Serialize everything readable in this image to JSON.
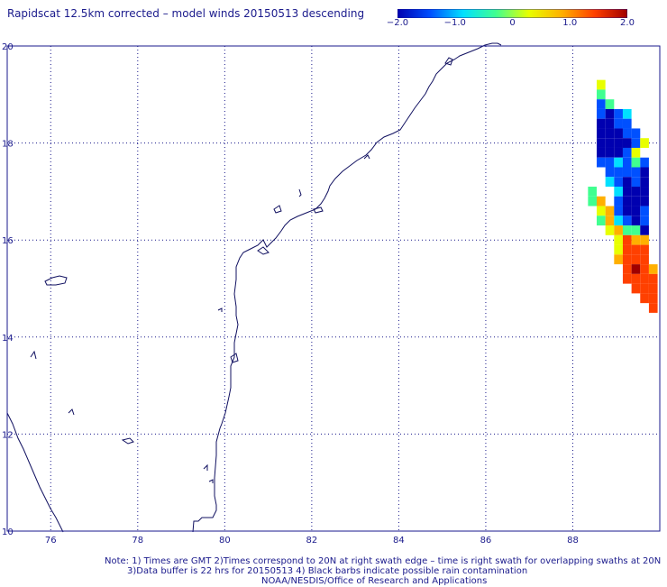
{
  "title": "Rapidscat 12.5km corrected – model winds 20150513 descending",
  "colorbar": {
    "labels": [
      "−2.0",
      "−1.0",
      "0",
      "1.0",
      "2.0"
    ],
    "values": [
      -2.0,
      -1.0,
      0,
      1.0,
      2.0
    ],
    "colors": [
      "#0000b0",
      "#0050ff",
      "#00e0ff",
      "#40ff90",
      "#e8ff00",
      "#ffb000",
      "#ff4000",
      "#a00000"
    ]
  },
  "map": {
    "lon_range": [
      75.0,
      90.0
    ],
    "lat_range": [
      10.0,
      20.0
    ],
    "lon_ticks": [
      "76",
      "78",
      "80",
      "82",
      "84",
      "86",
      "88"
    ],
    "lon_tick_values": [
      76,
      78,
      80,
      82,
      84,
      86,
      88
    ],
    "lat_ticks": [
      "10",
      "12",
      "14",
      "16",
      "18",
      "20"
    ],
    "lat_tick_values": [
      10,
      12,
      14,
      16,
      18,
      20
    ],
    "grid": "dotted",
    "coastline_color": "#101060",
    "swath_cells": [
      {
        "lon": 88.65,
        "lat": 19.2,
        "v": 0.2
      },
      {
        "lon": 88.65,
        "lat": 19.0,
        "v": -0.5
      },
      {
        "lon": 88.65,
        "lat": 18.8,
        "v": -1.3
      },
      {
        "lon": 88.85,
        "lat": 18.8,
        "v": -0.4
      },
      {
        "lon": 88.65,
        "lat": 18.6,
        "v": -1.5
      },
      {
        "lon": 88.85,
        "lat": 18.6,
        "v": -1.6
      },
      {
        "lon": 89.05,
        "lat": 18.6,
        "v": -1.2
      },
      {
        "lon": 89.25,
        "lat": 18.6,
        "v": -1.0
      },
      {
        "lon": 88.65,
        "lat": 18.4,
        "v": -1.7
      },
      {
        "lon": 88.85,
        "lat": 18.4,
        "v": -1.8
      },
      {
        "lon": 89.05,
        "lat": 18.4,
        "v": -1.5
      },
      {
        "lon": 89.25,
        "lat": 18.4,
        "v": -1.3
      },
      {
        "lon": 88.65,
        "lat": 18.2,
        "v": -1.8
      },
      {
        "lon": 88.85,
        "lat": 18.2,
        "v": -1.9
      },
      {
        "lon": 89.05,
        "lat": 18.2,
        "v": -1.7
      },
      {
        "lon": 89.25,
        "lat": 18.2,
        "v": -1.5
      },
      {
        "lon": 89.45,
        "lat": 18.2,
        "v": -1.2
      },
      {
        "lon": 88.65,
        "lat": 18.0,
        "v": -1.9
      },
      {
        "lon": 88.85,
        "lat": 18.0,
        "v": -2.0
      },
      {
        "lon": 89.05,
        "lat": 18.0,
        "v": -1.8
      },
      {
        "lon": 89.25,
        "lat": 18.0,
        "v": -1.6
      },
      {
        "lon": 89.45,
        "lat": 18.0,
        "v": -1.4
      },
      {
        "lon": 89.65,
        "lat": 18.0,
        "v": 0.4
      },
      {
        "lon": 88.65,
        "lat": 17.8,
        "v": -1.8
      },
      {
        "lon": 88.85,
        "lat": 17.8,
        "v": -1.9
      },
      {
        "lon": 89.05,
        "lat": 17.8,
        "v": -1.7
      },
      {
        "lon": 89.25,
        "lat": 17.8,
        "v": -1.3
      },
      {
        "lon": 89.45,
        "lat": 17.8,
        "v": 0.3
      },
      {
        "lon": 88.65,
        "lat": 17.6,
        "v": -1.5
      },
      {
        "lon": 88.85,
        "lat": 17.6,
        "v": -1.4
      },
      {
        "lon": 89.05,
        "lat": 17.6,
        "v": -1.0
      },
      {
        "lon": 89.25,
        "lat": 17.6,
        "v": -1.2
      },
      {
        "lon": 89.45,
        "lat": 17.6,
        "v": -0.3
      },
      {
        "lon": 89.65,
        "lat": 17.6,
        "v": -1.5
      },
      {
        "lon": 88.85,
        "lat": 17.4,
        "v": -1.2
      },
      {
        "lon": 89.05,
        "lat": 17.4,
        "v": -1.4
      },
      {
        "lon": 89.25,
        "lat": 17.4,
        "v": -1.3
      },
      {
        "lon": 89.45,
        "lat": 17.4,
        "v": -1.4
      },
      {
        "lon": 89.65,
        "lat": 17.4,
        "v": -1.6
      },
      {
        "lon": 88.85,
        "lat": 17.2,
        "v": -0.9
      },
      {
        "lon": 89.05,
        "lat": 17.2,
        "v": -1.5
      },
      {
        "lon": 89.25,
        "lat": 17.2,
        "v": -1.6
      },
      {
        "lon": 89.45,
        "lat": 17.2,
        "v": -1.4
      },
      {
        "lon": 89.65,
        "lat": 17.2,
        "v": -1.7
      },
      {
        "lon": 88.45,
        "lat": 17.0,
        "v": -0.3
      },
      {
        "lon": 89.05,
        "lat": 17.0,
        "v": -0.7
      },
      {
        "lon": 89.25,
        "lat": 17.0,
        "v": -1.6
      },
      {
        "lon": 89.45,
        "lat": 17.0,
        "v": -1.8
      },
      {
        "lon": 89.65,
        "lat": 17.0,
        "v": -1.9
      },
      {
        "lon": 88.45,
        "lat": 16.8,
        "v": -0.2
      },
      {
        "lon": 88.65,
        "lat": 16.8,
        "v": 0.6
      },
      {
        "lon": 89.05,
        "lat": 16.8,
        "v": -1.3
      },
      {
        "lon": 89.25,
        "lat": 16.8,
        "v": -1.7
      },
      {
        "lon": 89.45,
        "lat": 16.8,
        "v": -1.6
      },
      {
        "lon": 89.65,
        "lat": 16.8,
        "v": -1.8
      },
      {
        "lon": 88.65,
        "lat": 16.6,
        "v": 0.4
      },
      {
        "lon": 88.85,
        "lat": 16.6,
        "v": 0.5
      },
      {
        "lon": 89.05,
        "lat": 16.6,
        "v": -1.2
      },
      {
        "lon": 89.25,
        "lat": 16.6,
        "v": -1.6
      },
      {
        "lon": 89.45,
        "lat": 16.6,
        "v": -1.8
      },
      {
        "lon": 89.65,
        "lat": 16.6,
        "v": -1.5
      },
      {
        "lon": 88.65,
        "lat": 16.4,
        "v": -0.1
      },
      {
        "lon": 88.85,
        "lat": 16.4,
        "v": 0.6
      },
      {
        "lon": 89.05,
        "lat": 16.4,
        "v": -1.0
      },
      {
        "lon": 89.25,
        "lat": 16.4,
        "v": -1.3
      },
      {
        "lon": 89.45,
        "lat": 16.4,
        "v": -1.6
      },
      {
        "lon": 89.65,
        "lat": 16.4,
        "v": -1.1
      },
      {
        "lon": 88.85,
        "lat": 16.2,
        "v": 0.3
      },
      {
        "lon": 89.05,
        "lat": 16.2,
        "v": 0.5
      },
      {
        "lon": 89.25,
        "lat": 16.2,
        "v": -0.1
      },
      {
        "lon": 89.45,
        "lat": 16.2,
        "v": -0.5
      },
      {
        "lon": 89.65,
        "lat": 16.2,
        "v": -2.0
      },
      {
        "lon": 89.05,
        "lat": 16.0,
        "v": 0.1
      },
      {
        "lon": 89.25,
        "lat": 16.0,
        "v": 1.2
      },
      {
        "lon": 89.45,
        "lat": 16.0,
        "v": 0.8
      },
      {
        "lon": 89.65,
        "lat": 16.0,
        "v": 0.5
      },
      {
        "lon": 89.05,
        "lat": 15.8,
        "v": 0.3
      },
      {
        "lon": 89.25,
        "lat": 15.8,
        "v": 1.0
      },
      {
        "lon": 89.45,
        "lat": 15.8,
        "v": 1.3
      },
      {
        "lon": 89.65,
        "lat": 15.8,
        "v": 1.1
      },
      {
        "lon": 89.05,
        "lat": 15.6,
        "v": 0.5
      },
      {
        "lon": 89.25,
        "lat": 15.6,
        "v": 1.2
      },
      {
        "lon": 89.45,
        "lat": 15.6,
        "v": 1.4
      },
      {
        "lon": 89.65,
        "lat": 15.6,
        "v": 1.2
      },
      {
        "lon": 89.25,
        "lat": 15.4,
        "v": 1.1
      },
      {
        "lon": 89.45,
        "lat": 15.4,
        "v": 1.5
      },
      {
        "lon": 89.65,
        "lat": 15.4,
        "v": 1.3
      },
      {
        "lon": 89.85,
        "lat": 15.4,
        "v": 0.9
      },
      {
        "lon": 89.25,
        "lat": 15.2,
        "v": 1.0
      },
      {
        "lon": 89.45,
        "lat": 15.2,
        "v": 1.2
      },
      {
        "lon": 89.65,
        "lat": 15.2,
        "v": 1.4
      },
      {
        "lon": 89.85,
        "lat": 15.2,
        "v": 1.1
      },
      {
        "lon": 89.45,
        "lat": 15.0,
        "v": 1.0
      },
      {
        "lon": 89.65,
        "lat": 15.0,
        "v": 1.3
      },
      {
        "lon": 89.85,
        "lat": 15.0,
        "v": 1.2
      },
      {
        "lon": 89.65,
        "lat": 14.8,
        "v": 1.1
      },
      {
        "lon": 89.85,
        "lat": 14.8,
        "v": 1.0
      },
      {
        "lon": 89.85,
        "lat": 14.6,
        "v": 1.2
      }
    ]
  },
  "notes": [
    "Note: 1) Times are GMT 2)Times correspond to 20N at right swath edge – time is right swath for overlapping swaths at 20N",
    "3)Data buffer is 22 hrs for 20150513 4) Black barbs indicate possible rain contamination",
    "NOAA/NESDIS/Office of Research and Applications"
  ]
}
